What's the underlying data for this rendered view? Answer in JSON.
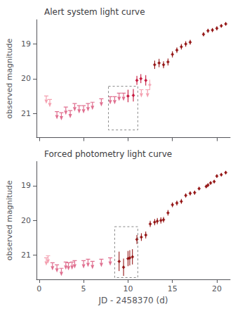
{
  "chart_data": [
    {
      "type": "scatter",
      "title": "Alert system light curve",
      "ylabel": "observed magnitude",
      "xlim": [
        -0.3,
        21.5
      ],
      "ylim": [
        21.7,
        18.3
      ],
      "xticks": [
        0,
        5,
        10,
        15,
        20
      ],
      "yticks": [
        19,
        20,
        21
      ],
      "grid": false,
      "tick_labels": "y",
      "series": [
        {
          "type": "upper_limit",
          "marker": "arrow",
          "x": [
            0.8,
            1.2,
            2.0,
            2.5,
            3.0,
            3.5,
            4.0,
            4.5,
            5.0,
            5.5,
            6.0,
            7.0,
            8.0,
            8.5,
            9.0,
            9.5,
            11.5,
            12.2
          ],
          "values": [
            20.5,
            20.6,
            20.95,
            20.98,
            20.82,
            20.92,
            20.72,
            20.78,
            20.78,
            20.72,
            20.68,
            20.58,
            20.52,
            20.52,
            20.42,
            20.42,
            20.32,
            20.32
          ],
          "colors": [
            "#f4a0b0",
            "#f4a0b0",
            "#e07090",
            "#e07090",
            "#e07090",
            "#e07090",
            "#e07090",
            "#e07090",
            "#e07090",
            "#e07090",
            "#e07090",
            "#e07090",
            "#e07090",
            "#e07090",
            "#e07090",
            "#e07090",
            "#f4a0b0",
            "#f4a0b0"
          ]
        },
        {
          "type": "scatter",
          "marker": "diamond",
          "x": [
            10.0,
            10.6,
            11.0,
            11.45,
            12.0,
            12.45,
            13.0,
            13.5,
            14.0,
            14.5,
            15.0,
            15.5,
            16.0,
            16.5,
            17.0,
            18.5,
            19.0,
            19.5,
            20.0,
            20.5,
            21.0
          ],
          "values": [
            20.5,
            20.48,
            20.05,
            20.0,
            20.05,
            20.18,
            19.6,
            19.55,
            19.6,
            19.52,
            19.3,
            19.18,
            19.08,
            19.0,
            18.95,
            18.72,
            18.62,
            18.6,
            18.55,
            18.48,
            18.42
          ],
          "yerr": [
            0.18,
            0.18,
            0.13,
            0.13,
            0.15,
            0.15,
            0.12,
            0.12,
            0.1,
            0.1,
            0.09,
            0.08,
            0.08,
            0.08,
            0.07,
            0.06,
            0.06,
            0.06,
            0.06,
            0.05,
            0.05
          ],
          "colors": [
            "#c0002a",
            "#c0002a",
            "#c0002a",
            "#c0002a",
            "#c0002a",
            "#f4a0b0",
            "#8b0000",
            "#8b0000",
            "#8b0000",
            "#8b0000",
            "#8b0000",
            "#8b0000",
            "#8b0000",
            "#8b0000",
            "#8b0000",
            "#8b0000",
            "#8b0000",
            "#8b0000",
            "#8b0000",
            "#8b0000",
            "#8b0000"
          ]
        }
      ],
      "box": {
        "x": [
          7.8,
          11.1
        ],
        "y": [
          20.22,
          21.48
        ],
        "line_style": "dashed"
      }
    },
    {
      "type": "scatter",
      "title": "Forced photometry light curve",
      "xlabel": "JD - 2458370 (d)",
      "ylabel": "observed magnitude",
      "xlim": [
        -0.3,
        21.5
      ],
      "ylim": [
        21.7,
        18.3
      ],
      "xticks": [
        0,
        5,
        10,
        15,
        20
      ],
      "yticks": [
        19,
        20,
        21
      ],
      "grid": false,
      "series": [
        {
          "type": "upper_limit",
          "marker": "arrow",
          "x": [
            0.8,
            1.0,
            1.5,
            2.0,
            2.5,
            3.0,
            3.3,
            3.7,
            4.0,
            5.0,
            5.5,
            6.0,
            7.0,
            8.0
          ],
          "values": [
            21.08,
            21.02,
            21.22,
            21.28,
            21.38,
            21.2,
            21.22,
            21.2,
            21.16,
            21.16,
            21.12,
            21.18,
            21.12,
            21.08
          ],
          "colors": [
            "#f4a0b0",
            "#f4a0b0",
            "#e07090",
            "#e07090",
            "#e07090",
            "#e07090",
            "#e07090",
            "#e07090",
            "#e07090",
            "#e07090",
            "#e07090",
            "#e07090",
            "#e07090",
            "#e07090"
          ]
        },
        {
          "type": "scatter",
          "marker": "diamond",
          "x": [
            9.0,
            9.5,
            10.0,
            10.2,
            10.5,
            11.0,
            11.5,
            12.0,
            12.5,
            13.0,
            13.3,
            13.7,
            14.0,
            14.5,
            15.0,
            15.5,
            16.0,
            16.5,
            17.0,
            17.5,
            18.0,
            18.8,
            19.0,
            19.3,
            19.7,
            20.0,
            20.5,
            21.0
          ],
          "values": [
            21.18,
            21.35,
            21.1,
            21.08,
            21.05,
            20.55,
            20.48,
            20.42,
            20.1,
            20.05,
            20.02,
            20.0,
            19.98,
            19.78,
            19.55,
            19.5,
            19.45,
            19.28,
            19.22,
            19.2,
            19.08,
            19.02,
            18.98,
            18.92,
            18.88,
            18.72,
            18.68,
            18.62
          ],
          "yerr": [
            0.28,
            0.25,
            0.22,
            0.22,
            0.22,
            0.13,
            0.11,
            0.1,
            0.09,
            0.09,
            0.09,
            0.09,
            0.08,
            0.08,
            0.07,
            0.07,
            0.07,
            0.06,
            0.06,
            0.06,
            0.05,
            0.05,
            0.05,
            0.05,
            0.05,
            0.05,
            0.05,
            0.05
          ],
          "colors": [
            "#8b0000",
            "#8b0000",
            "#8b0000",
            "#8b0000",
            "#8b0000",
            "#8b0000",
            "#8b0000",
            "#8b0000",
            "#8b0000",
            "#8b0000",
            "#8b0000",
            "#8b0000",
            "#8b0000",
            "#8b0000",
            "#8b0000",
            "#8b0000",
            "#8b0000",
            "#8b0000",
            "#8b0000",
            "#8b0000",
            "#8b0000",
            "#8b0000",
            "#8b0000",
            "#8b0000",
            "#8b0000",
            "#8b0000",
            "#8b0000",
            "#8b0000"
          ]
        }
      ],
      "box": {
        "x": [
          8.5,
          11.1
        ],
        "y": [
          20.18,
          21.65
        ],
        "line_style": "dashed"
      }
    }
  ]
}
